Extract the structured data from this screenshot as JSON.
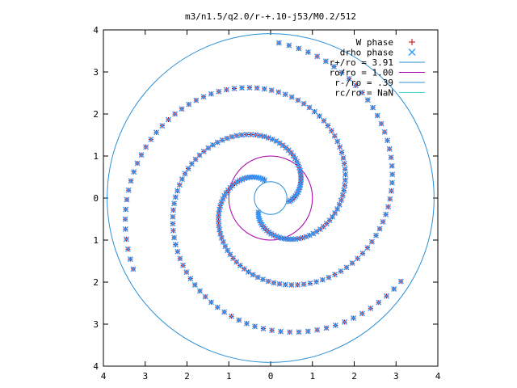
{
  "chart_data": {
    "type": "scatter",
    "title": "m3/n1.5/q2.0/r-+.10-j53/M0.2/512",
    "xlabel": "",
    "ylabel": "",
    "xlim": [
      -4,
      4
    ],
    "ylim": [
      -4,
      4
    ],
    "x_tick_labels": [
      "4",
      "3",
      "2",
      "1",
      "0",
      "1",
      "2",
      "3",
      "4"
    ],
    "y_tick_labels": [
      "4",
      "3",
      "2",
      "1",
      "0",
      "1",
      "2",
      "3",
      "4"
    ],
    "grid": false,
    "legend_position": "top-right",
    "legend": [
      {
        "label": "W phase",
        "marker": "+",
        "color": "#cc0000"
      },
      {
        "label": "drho phase",
        "marker": "x",
        "color": "#3399ff"
      },
      {
        "label": "r+/ro = 3.91",
        "marker": "line",
        "color": "#2b8fd6"
      },
      {
        "label": "ro/ro = 1.00",
        "marker": "line",
        "color": "#aa00aa"
      },
      {
        "label": "r-/ro = .39",
        "marker": "line",
        "color": "#2b8fd6"
      },
      {
        "label": "rc/ro = NaN",
        "marker": "line",
        "color": "#3fd6d6"
      }
    ],
    "circles": [
      {
        "name": "r+/ro = 3.91",
        "r": 3.91,
        "color": "#2b8fd6"
      },
      {
        "name": "ro/ro = 1.00",
        "r": 1.0,
        "color": "#aa00aa"
      },
      {
        "name": "r-/ro = .39",
        "r": 0.39,
        "color": "#2b8fd6"
      }
    ],
    "series": [
      {
        "name": "W phase",
        "marker": "+",
        "color": "#cc0000",
        "arms": [
          {
            "r0": 0.45,
            "theta0": 1.9,
            "rate": 0.55,
            "turns": 4.6,
            "points": 110
          },
          {
            "r0": 0.45,
            "theta0": 4.0,
            "rate": 0.55,
            "turns": 4.6,
            "points": 110
          },
          {
            "r0": 0.45,
            "theta0": 6.1,
            "rate": 0.55,
            "turns": 4.6,
            "points": 110
          }
        ]
      },
      {
        "name": "drho phase",
        "marker": "x",
        "color": "#3399ff",
        "arms": [
          {
            "r0": 0.45,
            "theta0": 1.9,
            "rate": 0.55,
            "turns": 4.6,
            "points": 110
          },
          {
            "r0": 0.45,
            "theta0": 4.0,
            "rate": 0.55,
            "turns": 4.6,
            "points": 110
          },
          {
            "r0": 0.45,
            "theta0": 6.1,
            "rate": 0.55,
            "turns": 4.6,
            "points": 110
          }
        ]
      }
    ]
  }
}
